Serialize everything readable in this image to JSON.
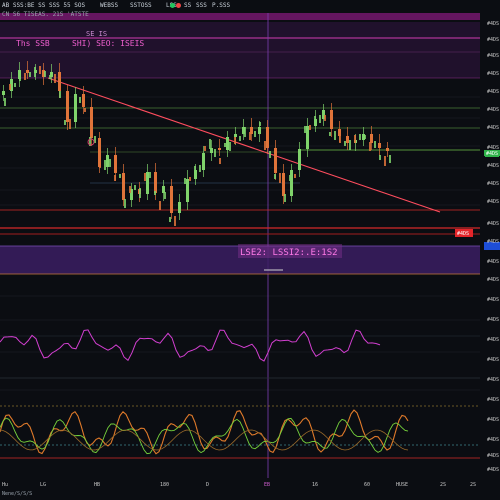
{
  "toolbar": {
    "items": [
      "AB SSS:BE SS SSS 55 SOS",
      "WEBSS",
      "SSTOSS",
      "LSS",
      "SS",
      "SSS",
      "P.SSS"
    ],
    "subtitle": "CN  S6 TISEAS. 21S 'ATSTE"
  },
  "annotations": {
    "left_label": "Ths SSB",
    "right_label": "SHI) SEO: ISEIS",
    "center_label": "LSE2: LSSI2:.E:1S2",
    "hud_code": "SE IS"
  },
  "price_axis": {
    "labels": [
      "#4DS",
      "#4DS",
      "#4DS",
      "#4DS",
      "#4DS",
      "#4DS",
      "#4DS",
      "#4DS",
      "#4DS",
      "#4DS",
      "#4DS",
      "#4DS",
      "#4DS",
      "#4DS",
      "#4DS",
      "#4DS",
      "#4DS",
      "#4DS",
      "#4DS",
      "#4DS",
      "#4DS",
      "#4DS",
      "#4DS",
      "#4DS",
      "#4DS"
    ],
    "badge_top": "#4DS",
    "badge_red": "#4DS"
  },
  "time_axis": {
    "labels": [
      "Hu",
      "LG",
      "HB",
      "180",
      "D",
      "EB",
      "16",
      "60",
      "HUSE",
      "2S",
      "2S"
    ],
    "footer": "Nene/S/S/S"
  },
  "colors": {
    "background": "#0b0d12",
    "candle_up": "#7fd36b",
    "candle_down": "#e0743a",
    "trend": "#ff4d5e",
    "magenta": "#e040c0",
    "purple_band": "#3b1f63",
    "red_band": "#c0201f",
    "hud_green": "#22c55e",
    "hud_red": "#ef4444"
  },
  "icons": [
    "hud-green-dot",
    "hud-red-dot",
    "alert-ring-icon"
  ]
}
